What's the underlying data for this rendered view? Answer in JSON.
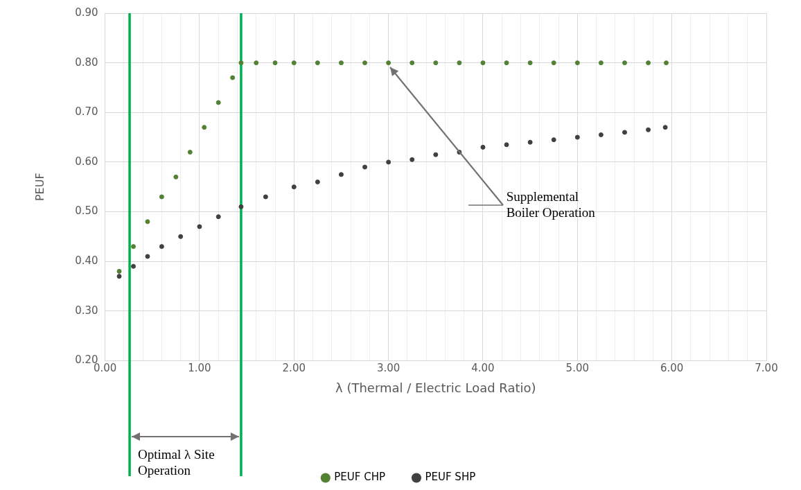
{
  "chart_data": {
    "type": "scatter",
    "xlabel": "λ (Thermal / Electric Load Ratio)",
    "ylabel": "PEUF",
    "xlim": [
      0,
      7
    ],
    "ylim": [
      0.2,
      0.9
    ],
    "xticks": [
      {
        "value": 0,
        "label": "0.00"
      },
      {
        "value": 0.2,
        "label": null
      },
      {
        "value": 0.4,
        "label": null
      },
      {
        "value": 0.6,
        "label": null
      },
      {
        "value": 0.8,
        "label": null
      },
      {
        "value": 1,
        "label": "1.00"
      },
      {
        "value": 1.2,
        "label": null
      },
      {
        "value": 1.4,
        "label": null
      },
      {
        "value": 1.6,
        "label": null
      },
      {
        "value": 1.8,
        "label": null
      },
      {
        "value": 2,
        "label": "2.00"
      },
      {
        "value": 2.2,
        "label": null
      },
      {
        "value": 2.4,
        "label": null
      },
      {
        "value": 2.6,
        "label": null
      },
      {
        "value": 2.8,
        "label": null
      },
      {
        "value": 3,
        "label": "3.00"
      },
      {
        "value": 3.2,
        "label": null
      },
      {
        "value": 3.4,
        "label": null
      },
      {
        "value": 3.6,
        "label": null
      },
      {
        "value": 3.8,
        "label": null
      },
      {
        "value": 4,
        "label": "4.00"
      },
      {
        "value": 4.2,
        "label": null
      },
      {
        "value": 4.4,
        "label": null
      },
      {
        "value": 4.6,
        "label": null
      },
      {
        "value": 4.8,
        "label": null
      },
      {
        "value": 5,
        "label": "5.00"
      },
      {
        "value": 5.2,
        "label": null
      },
      {
        "value": 5.4,
        "label": null
      },
      {
        "value": 5.6,
        "label": null
      },
      {
        "value": 5.8,
        "label": null
      },
      {
        "value": 6,
        "label": "6.00"
      },
      {
        "value": 6.2,
        "label": null
      },
      {
        "value": 6.4,
        "label": null
      },
      {
        "value": 6.6,
        "label": null
      },
      {
        "value": 6.8,
        "label": null
      },
      {
        "value": 7,
        "label": "7.00"
      }
    ],
    "yticks": [
      {
        "value": 0.2,
        "label": "0.20"
      },
      {
        "value": 0.3,
        "label": "0.30"
      },
      {
        "value": 0.4,
        "label": "0.40"
      },
      {
        "value": 0.5,
        "label": "0.50"
      },
      {
        "value": 0.6,
        "label": "0.60"
      },
      {
        "value": 0.7,
        "label": "0.70"
      },
      {
        "value": 0.8,
        "label": "0.80"
      },
      {
        "value": 0.9,
        "label": "0.90"
      }
    ],
    "grid": true,
    "legend": "bottom",
    "marker": "circle",
    "series": [
      {
        "name": "PEUF CHP",
        "color": "#548235",
        "x": [
          0.15,
          0.3,
          0.45,
          0.6,
          0.75,
          0.9,
          1.05,
          1.2,
          1.35,
          1.44,
          1.6,
          1.8,
          2.0,
          2.25,
          2.5,
          2.75,
          3.0,
          3.25,
          3.5,
          3.75,
          4.0,
          4.25,
          4.5,
          4.75,
          5.0,
          5.25,
          5.5,
          5.75,
          5.94
        ],
        "values": [
          0.38,
          0.43,
          0.48,
          0.53,
          0.57,
          0.62,
          0.67,
          0.72,
          0.77,
          0.8,
          0.8,
          0.8,
          0.8,
          0.8,
          0.8,
          0.8,
          0.8,
          0.8,
          0.8,
          0.8,
          0.8,
          0.8,
          0.8,
          0.8,
          0.8,
          0.8,
          0.8,
          0.8,
          0.8
        ]
      },
      {
        "name": "PEUF SHP",
        "color": "#404040",
        "x": [
          0.15,
          0.3,
          0.45,
          0.6,
          0.8,
          1.0,
          1.2,
          1.44,
          1.7,
          2.0,
          2.25,
          2.5,
          2.75,
          3.0,
          3.25,
          3.5,
          3.75,
          4.0,
          4.25,
          4.5,
          4.75,
          5.0,
          5.25,
          5.5,
          5.75,
          5.93
        ],
        "values": [
          0.37,
          0.39,
          0.41,
          0.43,
          0.45,
          0.47,
          0.49,
          0.51,
          0.53,
          0.55,
          0.56,
          0.575,
          0.59,
          0.6,
          0.605,
          0.615,
          0.62,
          0.63,
          0.635,
          0.64,
          0.645,
          0.65,
          0.655,
          0.66,
          0.665,
          0.67
        ]
      }
    ],
    "ref_lines": [
      {
        "axis": "x",
        "value": 0.26,
        "color": "#00b050"
      },
      {
        "axis": "x",
        "value": 1.44,
        "color": "#00b050"
      }
    ],
    "annotations": [
      {
        "text": "Supplemental Boiler Operation",
        "x": 3.0,
        "y": 0.8
      },
      "Optimal λ Site Operation"
    ]
  }
}
